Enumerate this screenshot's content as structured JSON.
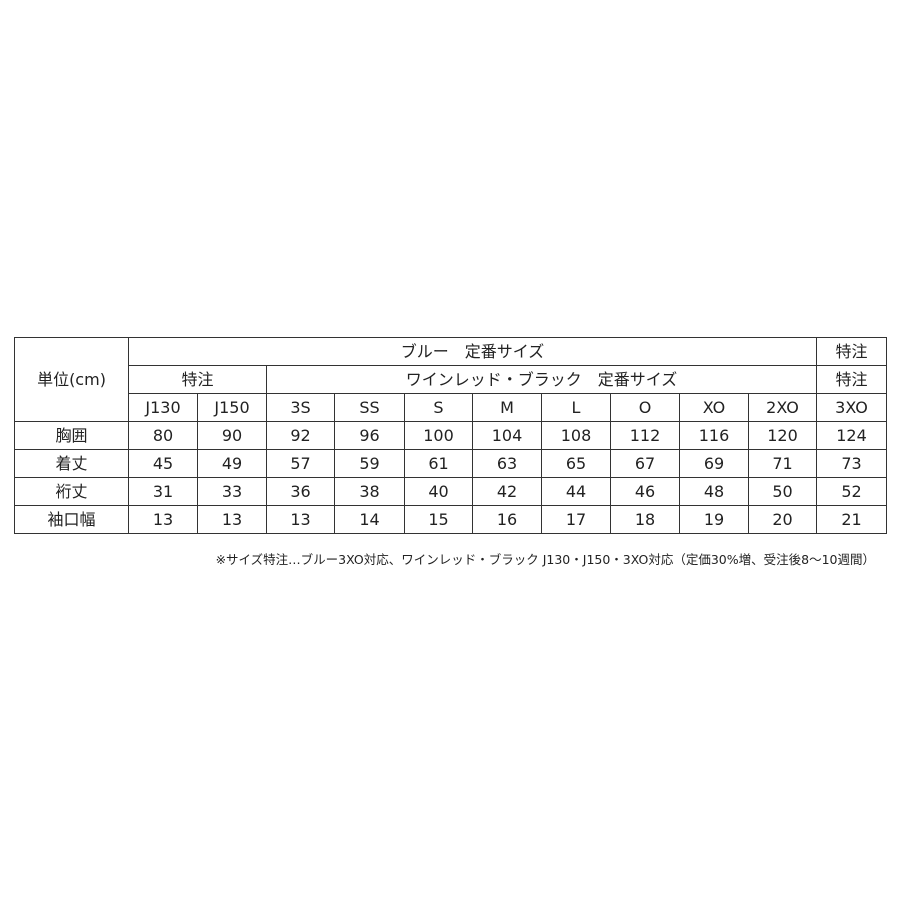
{
  "unit_label": "単位(cm)",
  "header_row1": {
    "blue_standard": "ブルー　定番サイズ",
    "blue_special": "特注"
  },
  "header_row2": {
    "wine_special": "特注",
    "wine_standard": "ワインレッド・ブラック　定番サイズ",
    "wine_special_right": "特注"
  },
  "sizes": [
    "J130",
    "J150",
    "3S",
    "SS",
    "S",
    "M",
    "L",
    "O",
    "XO",
    "2XO",
    "3XO"
  ],
  "rows": [
    {
      "label": "胸囲",
      "values": [
        "80",
        "90",
        "92",
        "96",
        "100",
        "104",
        "108",
        "112",
        "116",
        "120",
        "124"
      ]
    },
    {
      "label": "着丈",
      "values": [
        "45",
        "49",
        "57",
        "59",
        "61",
        "63",
        "65",
        "67",
        "69",
        "71",
        "73"
      ]
    },
    {
      "label": "裄丈",
      "values": [
        "31",
        "33",
        "36",
        "38",
        "40",
        "42",
        "44",
        "46",
        "48",
        "50",
        "52"
      ]
    },
    {
      "label": "袖口幅",
      "values": [
        "13",
        "13",
        "13",
        "14",
        "15",
        "16",
        "17",
        "18",
        "19",
        "20",
        "21"
      ]
    }
  ],
  "footnote": "※サイズ特注…ブルー3XO対応、ワインレッド・ブラック J130・J150・3XO対応（定価30%増、受注後8～10週間）"
}
